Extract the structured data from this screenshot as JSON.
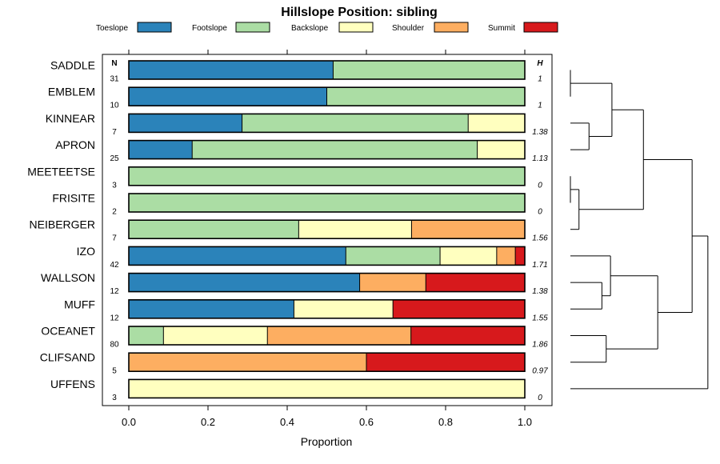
{
  "chart_data": {
    "type": "bar",
    "orientation": "horizontal-stacked",
    "title": "Hillslope Position: sibling",
    "xlabel": "Proportion",
    "ylabel": "",
    "xlim": [
      0,
      1
    ],
    "xticks": [
      "0.0",
      "0.2",
      "0.4",
      "0.6",
      "0.8",
      "1.0"
    ],
    "xtick_values": [
      0,
      0.2,
      0.4,
      0.6,
      0.8,
      1.0
    ],
    "n_header": "N",
    "h_header": "H",
    "legend_position": "top",
    "series": [
      {
        "name": "Toeslope",
        "color": "#2b83ba"
      },
      {
        "name": "Footslope",
        "color": "#abdda4"
      },
      {
        "name": "Backslope",
        "color": "#ffffbf"
      },
      {
        "name": "Shoulder",
        "color": "#fdae61"
      },
      {
        "name": "Summit",
        "color": "#d7191c"
      }
    ],
    "categories": [
      "SADDLE",
      "EMBLEM",
      "KINNEAR",
      "APRON",
      "MEETEETSE",
      "FRISITE",
      "NEIBERGER",
      "IZO",
      "WALLSON",
      "MUFF",
      "OCEANET",
      "CLIFSAND",
      "UFFENS"
    ],
    "n": [
      "31",
      "10",
      "7",
      "25",
      "3",
      "2",
      "7",
      "42",
      "12",
      "12",
      "80",
      "5",
      "3"
    ],
    "h": [
      "1",
      "1",
      "1.38",
      "1.13",
      "0",
      "0",
      "1.56",
      "1.71",
      "1.38",
      "1.55",
      "1.86",
      "0.97",
      "0"
    ],
    "values": [
      [
        0.516,
        0.484,
        0,
        0,
        0
      ],
      [
        0.5,
        0.5,
        0,
        0,
        0
      ],
      [
        0.286,
        0.571,
        0.143,
        0,
        0
      ],
      [
        0.16,
        0.72,
        0.12,
        0,
        0
      ],
      [
        0,
        1,
        0,
        0,
        0
      ],
      [
        0,
        1,
        0,
        0,
        0
      ],
      [
        0,
        0.429,
        0.285,
        0.286,
        0
      ],
      [
        0.548,
        0.238,
        0.143,
        0.047,
        0.024
      ],
      [
        0.583,
        0,
        0,
        0.167,
        0.25
      ],
      [
        0.417,
        0,
        0.25,
        0,
        0.333
      ],
      [
        0,
        0.0875,
        0.2625,
        0.3625,
        0.2875
      ],
      [
        0,
        0,
        0,
        0.6,
        0.4
      ],
      [
        0,
        0,
        1,
        0,
        0
      ]
    ],
    "dendrogram": {
      "leaves": [
        "SADDLE",
        "EMBLEM",
        "KINNEAR",
        "APRON",
        "MEETEETSE",
        "FRISITE",
        "NEIBERGER",
        "IZO",
        "WALLSON",
        "MUFF",
        "OCEANET",
        "CLIFSAND",
        "UFFENS"
      ],
      "merges": [
        {
          "a": "L0",
          "b": "L1",
          "h": 0.0
        },
        {
          "a": "L4",
          "b": "L5",
          "h": 0.0
        },
        {
          "a": "L2",
          "b": "L3",
          "h": 0.13
        },
        {
          "a": "L8",
          "b": "L9",
          "h": 0.22
        },
        {
          "a": "N1",
          "b": "L6",
          "h": 0.06
        },
        {
          "a": "L10",
          "b": "L11",
          "h": 0.25
        },
        {
          "a": "N0",
          "b": "N2",
          "h": 0.29
        },
        {
          "a": "L7",
          "b": "N3",
          "h": 0.28
        },
        {
          "a": "N7",
          "b": "N5",
          "h": 0.61
        },
        {
          "a": "N6",
          "b": "N4",
          "h": 0.51
        },
        {
          "a": "N9",
          "b": "N8",
          "h": 0.85
        },
        {
          "a": "N10",
          "b": "L12",
          "h": 0.96
        }
      ]
    }
  }
}
